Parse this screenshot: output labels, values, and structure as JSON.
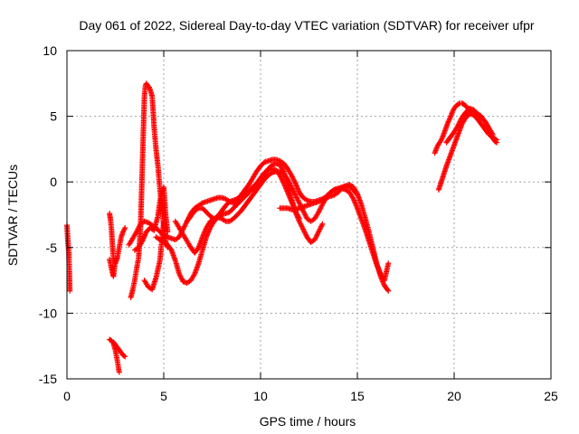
{
  "chart_data": {
    "type": "scatter",
    "title": "Day 061 of 2022, Sidereal Day-to-day VTEC variation (SDTVAR) for receiver ufpr",
    "xlabel": "GPS time / hours",
    "ylabel": "SDTVAR / TECUs",
    "xlim": [
      0,
      25
    ],
    "ylim": [
      -15,
      10
    ],
    "xticks": [
      0,
      5,
      10,
      15,
      20,
      25
    ],
    "xtick_labels": [
      "0",
      "5",
      "10",
      "15",
      "20",
      "25"
    ],
    "yticks": [
      -15,
      -10,
      -5,
      0,
      5,
      10
    ],
    "ytick_labels": [
      "-15",
      "-10",
      "-5",
      "0",
      "5",
      "10"
    ],
    "grid": true,
    "marker": "+",
    "color": "#ff0000",
    "series": [
      {
        "name": "t0",
        "x": [
          0.0,
          0.05,
          0.1,
          0.15
        ],
        "y": [
          -3.3,
          -4.6,
          -5.4,
          -8.3
        ]
      },
      {
        "name": "a1",
        "x": [
          2.2,
          2.3,
          2.4,
          2.5,
          2.6,
          2.7
        ],
        "y": [
          -12.0,
          -12.1,
          -12.3,
          -12.8,
          -13.6,
          -14.5
        ]
      },
      {
        "name": "a2",
        "x": [
          2.4,
          2.6,
          2.8,
          2.9,
          3.0
        ],
        "y": [
          -12.2,
          -12.6,
          -13.0,
          -13.2,
          -13.3
        ]
      },
      {
        "name": "b1",
        "x": [
          2.2,
          2.25,
          2.3,
          2.35,
          2.4,
          2.5,
          2.6,
          2.7,
          2.8,
          2.9,
          3.0
        ],
        "y": [
          -2.4,
          -2.9,
          -3.6,
          -4.8,
          -5.8,
          -6.2,
          -5.8,
          -5.0,
          -4.2,
          -3.8,
          -3.5
        ]
      },
      {
        "name": "b2",
        "x": [
          2.2,
          2.3,
          2.4,
          2.5,
          2.6
        ],
        "y": [
          -5.9,
          -6.6,
          -7.2,
          -6.0,
          -5.8
        ]
      },
      {
        "name": "c1",
        "x": [
          3.3,
          3.4,
          3.5,
          3.6,
          3.7,
          3.8,
          3.85,
          3.9,
          3.95,
          4.0,
          4.05,
          4.1,
          4.15,
          4.2,
          4.25,
          4.3,
          4.35,
          4.4,
          4.45,
          4.5,
          4.6,
          4.7,
          4.8,
          4.9,
          5.0,
          5.1,
          5.2
        ],
        "y": [
          -8.8,
          -8.2,
          -7.5,
          -6.6,
          -5.8,
          -3.5,
          -1.0,
          1.5,
          4.0,
          6.5,
          7.3,
          7.5,
          7.4,
          7.3,
          7.2,
          7.0,
          6.8,
          6.5,
          5.5,
          4.2,
          2.5,
          1.2,
          -0.5,
          -2.0,
          -3.3,
          -4.5,
          -5.0
        ]
      },
      {
        "name": "c2",
        "x": [
          3.5,
          3.7,
          3.9,
          4.1,
          4.3,
          4.5,
          4.7,
          4.8,
          4.9,
          5.0,
          5.1,
          5.2
        ],
        "y": [
          -5.2,
          -5.0,
          -4.5,
          -3.8,
          -3.5,
          -3.7,
          -2.6,
          -1.5,
          -0.8,
          -0.4,
          -2.5,
          -3.8
        ]
      },
      {
        "name": "c3",
        "x": [
          4.0,
          4.2,
          4.4,
          4.6,
          4.8,
          5.0
        ],
        "y": [
          -7.5,
          -8.0,
          -8.2,
          -7.3,
          -6.0,
          -3.0
        ]
      },
      {
        "name": "d1",
        "x": [
          3.2,
          3.4,
          3.6,
          3.8,
          4.0,
          4.2,
          4.4,
          4.6,
          4.8,
          5.0,
          5.2,
          5.4,
          5.6,
          5.8,
          6.0,
          6.2,
          6.4,
          6.6,
          6.8,
          7.0,
          7.2,
          7.4,
          7.6,
          7.8,
          8.0,
          8.2,
          8.4,
          8.6,
          8.8,
          9.0,
          9.2,
          9.4,
          9.6,
          9.8,
          10.0,
          10.2,
          10.4,
          10.6,
          10.8,
          11.0,
          11.2,
          11.4,
          11.6,
          11.8,
          12.0,
          12.2,
          12.4,
          12.6,
          12.8,
          13.0,
          13.2,
          13.4,
          13.6,
          13.8,
          14.0,
          14.2,
          14.4,
          14.6,
          14.8,
          15.0,
          15.2,
          15.4,
          15.6,
          15.8,
          16.0,
          16.2,
          16.4,
          16.6
        ],
        "y": [
          -4.8,
          -4.3,
          -3.8,
          -3.2,
          -3.0,
          -3.1,
          -3.3,
          -3.5,
          -3.8,
          -4.0,
          -4.2,
          -4.3,
          -4.4,
          -4.2,
          -3.6,
          -3.0,
          -2.4,
          -2.0,
          -1.8,
          -1.6,
          -1.5,
          -1.4,
          -1.3,
          -1.2,
          -1.2,
          -1.3,
          -1.5,
          -1.6,
          -1.3,
          -1.0,
          -0.6,
          -0.2,
          0.3,
          0.8,
          1.2,
          1.5,
          1.6,
          1.7,
          1.7,
          1.6,
          1.4,
          1.0,
          0.5,
          -0.1,
          -0.8,
          -1.2,
          -1.4,
          -1.5,
          -1.5,
          -1.4,
          -1.3,
          -1.2,
          -1.1,
          -1.0,
          -0.8,
          -0.5,
          -0.3,
          -0.2,
          -0.4,
          -0.9,
          -1.7,
          -2.7,
          -3.8,
          -5.0,
          -6.2,
          -7.2,
          -7.9,
          -8.3
        ]
      },
      {
        "name": "d2",
        "x": [
          4.6,
          4.8,
          5.0,
          5.2,
          5.4,
          5.6,
          5.8,
          6.0,
          6.2,
          6.4,
          6.6,
          6.8,
          7.0,
          7.2,
          7.4,
          7.6,
          7.8,
          8.0,
          8.2,
          8.4,
          8.6,
          8.8,
          9.0,
          9.2,
          9.4,
          9.6,
          9.8,
          10.0,
          10.2,
          10.4,
          10.6,
          10.8,
          11.0,
          11.2,
          11.4,
          11.6,
          11.8,
          12.0
        ],
        "y": [
          -4.2,
          -4.4,
          -4.6,
          -4.8,
          -5.2,
          -6.0,
          -7.0,
          -7.6,
          -7.7,
          -7.5,
          -7.0,
          -6.2,
          -5.2,
          -4.2,
          -3.5,
          -3.0,
          -2.7,
          -2.5,
          -2.4,
          -2.3,
          -2.0,
          -1.7,
          -1.4,
          -1.1,
          -0.8,
          -0.5,
          -0.2,
          0.2,
          0.6,
          1.0,
          1.3,
          1.4,
          1.3,
          0.8,
          -0.2,
          -1.3,
          -2.2,
          -2.8
        ]
      },
      {
        "name": "d3",
        "x": [
          5.6,
          5.8,
          6.0,
          6.2,
          6.4,
          6.6,
          6.8,
          7.0,
          7.2,
          7.4,
          7.6,
          7.8,
          8.0,
          8.2,
          8.4,
          8.6,
          8.8,
          9.0,
          9.2,
          9.4,
          9.6,
          9.8,
          10.0,
          10.2,
          10.4,
          10.6,
          10.8,
          11.0,
          11.2,
          11.4,
          11.6,
          11.8,
          12.0,
          12.2,
          12.4,
          12.6,
          12.8,
          13.0,
          13.2,
          13.4,
          13.6,
          13.8,
          14.0,
          14.2,
          14.4,
          14.6,
          14.8,
          15.0
        ],
        "y": [
          -3.0,
          -3.5,
          -4.0,
          -4.5,
          -5.0,
          -5.4,
          -5.0,
          -4.2,
          -3.5,
          -3.0,
          -2.8,
          -2.7,
          -2.8,
          -3.0,
          -3.0,
          -2.8,
          -2.5,
          -2.2,
          -1.8,
          -1.4,
          -1.0,
          -0.6,
          -0.2,
          0.2,
          0.5,
          0.7,
          0.8,
          0.8,
          0.6,
          0.2,
          -0.4,
          -1.0,
          -1.6,
          -2.2,
          -2.8,
          -3.0,
          -2.8,
          -2.3,
          -1.7,
          -1.2,
          -0.8,
          -0.6,
          -0.5,
          -0.4,
          -0.3,
          -0.4,
          -0.6,
          -1.0
        ]
      },
      {
        "name": "d4",
        "x": [
          6.2,
          6.4,
          6.6,
          6.8,
          7.0,
          7.2,
          7.4,
          7.6,
          7.8,
          8.0,
          8.2,
          8.4,
          8.6,
          8.8,
          9.0,
          9.2,
          9.4,
          9.6,
          9.8,
          10.0,
          10.2,
          10.4,
          10.6,
          10.8,
          11.0,
          11.2,
          11.4,
          11.6,
          11.8,
          12.0,
          12.2,
          12.4,
          12.6,
          12.8,
          13.0,
          13.2
        ],
        "y": [
          -3.0,
          -2.6,
          -2.2,
          -2.0,
          -2.0,
          -2.3,
          -2.6,
          -2.8,
          -2.6,
          -2.2,
          -1.8,
          -1.5,
          -1.4,
          -1.3,
          -1.1,
          -0.9,
          -0.7,
          -0.4,
          -0.1,
          0.3,
          0.7,
          0.9,
          1.0,
          0.9,
          0.5,
          -0.1,
          -0.8,
          -1.5,
          -2.3,
          -3.0,
          -3.6,
          -4.2,
          -4.6,
          -4.4,
          -3.8,
          -3.2
        ]
      },
      {
        "name": "d5",
        "x": [
          11.0,
          11.2,
          11.4,
          11.6,
          11.8,
          12.0,
          12.2,
          12.4,
          12.6,
          12.8,
          13.0,
          13.2,
          13.4,
          13.6,
          13.8,
          14.0,
          14.2,
          14.4,
          14.6,
          14.8,
          15.0,
          15.2,
          15.4,
          15.6,
          15.8,
          16.0,
          16.2,
          16.4,
          16.6
        ],
        "y": [
          -2.0,
          -2.0,
          -2.0,
          -2.1,
          -2.1,
          -2.0,
          -1.9,
          -1.8,
          -1.7,
          -1.6,
          -1.5,
          -1.3,
          -1.1,
          -0.8,
          -0.6,
          -0.5,
          -0.5,
          -0.6,
          -0.8,
          -1.3,
          -2.0,
          -2.8,
          -3.6,
          -4.5,
          -5.4,
          -6.3,
          -7.0,
          -7.5,
          -6.2
        ]
      },
      {
        "name": "e1",
        "x": [
          19.0,
          19.1,
          19.2,
          19.3,
          19.4,
          19.5,
          19.6,
          19.7,
          19.8,
          19.9,
          20.0,
          20.1,
          20.2,
          20.3,
          20.4,
          20.5,
          20.6,
          20.7,
          20.8,
          20.9,
          21.0,
          21.1,
          21.2,
          21.3,
          21.4,
          21.5,
          21.6,
          21.7,
          21.8,
          21.9,
          22.0,
          22.1,
          22.2
        ],
        "y": [
          2.2,
          2.6,
          2.9,
          3.1,
          3.4,
          3.8,
          4.2,
          4.6,
          4.9,
          5.3,
          5.6,
          5.8,
          5.9,
          6.0,
          6.0,
          5.9,
          5.8,
          5.6,
          5.5,
          5.4,
          5.4,
          5.3,
          5.2,
          5.1,
          5.0,
          4.8,
          4.6,
          4.3,
          4.0,
          3.6,
          3.3,
          3.1,
          3.0
        ]
      },
      {
        "name": "e2",
        "x": [
          19.2,
          19.4,
          19.6,
          19.8,
          20.0,
          20.2,
          20.4,
          20.6,
          20.8,
          21.0,
          21.2,
          21.4,
          21.6,
          21.8,
          22.0,
          22.2
        ],
        "y": [
          -0.6,
          0.3,
          1.2,
          2.0,
          2.8,
          3.6,
          4.4,
          4.9,
          5.2,
          5.1,
          4.8,
          4.4,
          4.0,
          3.6,
          3.4,
          3.2
        ]
      },
      {
        "name": "e3",
        "x": [
          19.6,
          19.8,
          20.0,
          20.2,
          20.4,
          20.6,
          20.8,
          21.0,
          21.2,
          21.4,
          21.6,
          21.8,
          22.0
        ],
        "y": [
          3.0,
          3.4,
          3.8,
          4.3,
          4.9,
          5.3,
          5.6,
          5.5,
          5.2,
          4.9,
          4.6,
          4.1,
          3.6
        ]
      }
    ]
  }
}
